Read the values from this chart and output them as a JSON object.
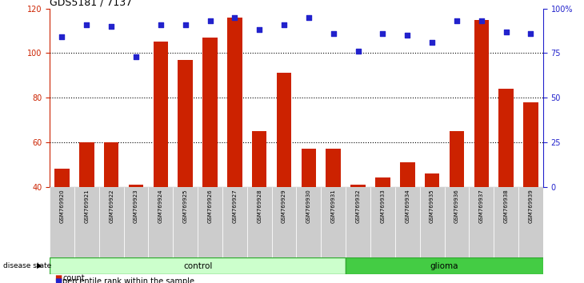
{
  "title": "GDS5181 / 7137",
  "samples": [
    "GSM769920",
    "GSM769921",
    "GSM769922",
    "GSM769923",
    "GSM769924",
    "GSM769925",
    "GSM769926",
    "GSM769927",
    "GSM769928",
    "GSM769929",
    "GSM769930",
    "GSM769931",
    "GSM769932",
    "GSM769933",
    "GSM769934",
    "GSM769935",
    "GSM769936",
    "GSM769937",
    "GSM769938",
    "GSM769939"
  ],
  "counts": [
    48,
    60,
    60,
    41,
    105,
    97,
    107,
    116,
    65,
    91,
    57,
    57,
    41,
    44,
    51,
    46,
    65,
    115,
    84,
    78
  ],
  "percentile_ranks": [
    84,
    91,
    90,
    73,
    91,
    91,
    93,
    95,
    88,
    91,
    95,
    86,
    76,
    86,
    85,
    81,
    93,
    93,
    87,
    86
  ],
  "n_control": 12,
  "n_glioma": 8,
  "bar_color": "#cc2200",
  "dot_color": "#2222cc",
  "control_bg": "#ccffcc",
  "glioma_bg": "#44cc44",
  "sample_bg": "#cccccc",
  "ylim_left": [
    40,
    120
  ],
  "ylim_right": [
    0,
    100
  ],
  "yticks_left": [
    40,
    60,
    80,
    100,
    120
  ],
  "yticks_right": [
    0,
    25,
    50,
    75,
    100
  ],
  "ytick_labels_right": [
    "0",
    "25",
    "50",
    "75",
    "100%"
  ],
  "legend_count": "count",
  "legend_pct": "percentile rank within the sample",
  "disease_state_label": "disease state",
  "control_label": "control",
  "glioma_label": "glioma"
}
